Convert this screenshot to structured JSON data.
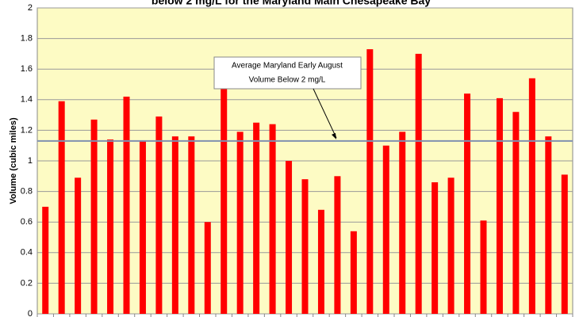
{
  "chart_data": {
    "type": "bar",
    "title": "below 2 mg/L for the Maryland Main Chesapeake Bay",
    "y_label": "Volume (cubic miles)",
    "categories": [
      null,
      null,
      null,
      null,
      null,
      null,
      null,
      null,
      null,
      null,
      null,
      null,
      null,
      null,
      null,
      null,
      null,
      null,
      null,
      null,
      null,
      null,
      null,
      null,
      null,
      null,
      null,
      null,
      null,
      null,
      null,
      null,
      null
    ],
    "values": [
      0.7,
      1.39,
      0.89,
      1.27,
      1.14,
      1.42,
      1.13,
      1.29,
      1.16,
      1.16,
      0.6,
      1.5,
      1.19,
      1.25,
      1.24,
      1.0,
      0.88,
      0.68,
      0.9,
      0.54,
      1.73,
      1.1,
      1.19,
      1.7,
      0.86,
      0.89,
      1.44,
      0.61,
      1.41,
      1.32,
      1.54,
      1.16,
      0.91
    ],
    "color": "#ff0000",
    "average_line": 1.13,
    "annotation": [
      "Average Maryland Early August",
      "Volume Below 2 mg/L"
    ],
    "ylim": [
      0,
      2
    ],
    "yticks": [
      0,
      0.2,
      0.4,
      0.6,
      0.8,
      1,
      1.2,
      1.4,
      1.6,
      1.8,
      2
    ],
    "grid": true
  }
}
